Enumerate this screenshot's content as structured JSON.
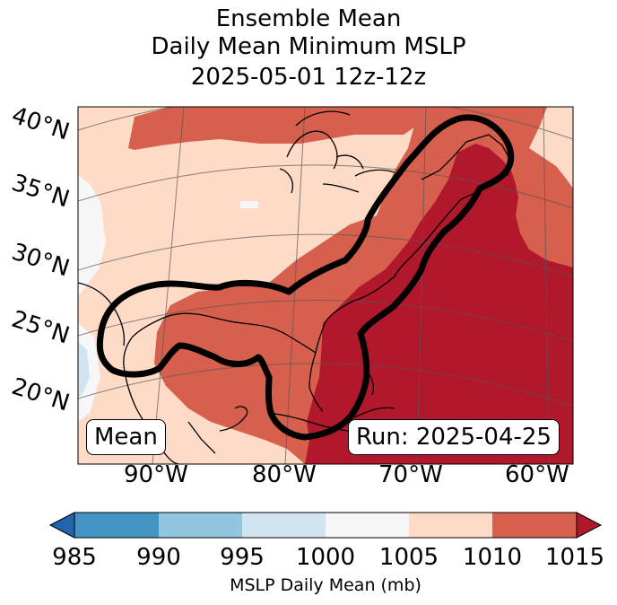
{
  "title": {
    "line1": "Ensemble Mean",
    "line2": "Daily Mean Minimum MSLP",
    "line3": "2025-05-01 12z-12z"
  },
  "map": {
    "lat_labels": [
      "40°N",
      "35°N",
      "30°N",
      "25°N",
      "20°N"
    ],
    "lon_labels": [
      "90°W",
      "80°W",
      "70°W",
      "60°W"
    ],
    "mean_box": "Mean",
    "run_box": "Run: 2025-04-25",
    "contour_color": "#000000"
  },
  "colorbar": {
    "label": "MSLP Daily Mean (mb)",
    "ticks": [
      "985",
      "990",
      "995",
      "1000",
      "1005",
      "1010",
      "1015"
    ],
    "colors": {
      "below_985": "#2166ac",
      "985_990": "#4393c3",
      "990_995": "#92c5de",
      "995_1000": "#d1e5f0",
      "1000_1005": "#f7f7f7",
      "1005_1010": "#fddbc7",
      "1010_1015": "#d6604d",
      "above_1015": "#b2182b"
    }
  }
}
